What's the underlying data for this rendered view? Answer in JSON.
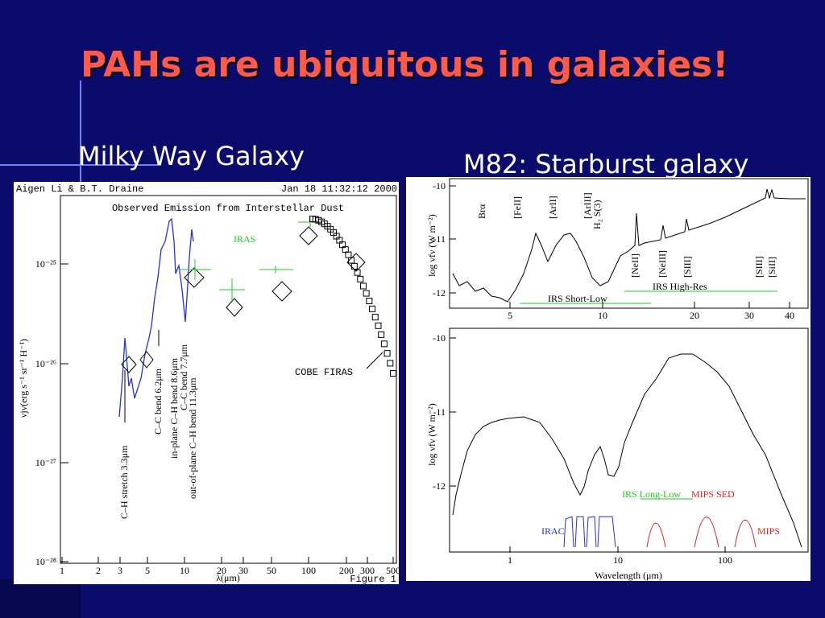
{
  "slide": {
    "title": "PAHs are ubiquitous in galaxies!"
  },
  "left_figure": {
    "caption": "Milky Way Galaxy",
    "credit": "Aigen Li & B.T. Draine",
    "timestamp": "Jan 18 11:32:12 2000",
    "plot_title": "Observed Emission from Interstellar Dust",
    "y_axis_label": "νjν(erg s⁻¹ sr⁻¹ H⁻¹)",
    "x_axis_label": "λ(μm)",
    "y_ticks": [
      "10⁻²⁵",
      "10⁻²⁶",
      "10⁻²⁷",
      "10⁻²⁸"
    ],
    "x_ticks": [
      "1",
      "2",
      "3",
      "5",
      "10",
      "20",
      "30",
      "50",
      "100",
      "200",
      "300",
      "500"
    ],
    "annotations": [
      "IRAS",
      "COBE FIRAS",
      "C–H stretch 3.3μm",
      "C–C bend 6.2μm",
      "in-plane C–H bend 8.6μm",
      "C–C bend 7.7μm",
      "out-of-plane C–H bend 11.3μm"
    ],
    "figure_label": "Figure 1"
  },
  "right_figure": {
    "caption": "M82: Starburst galaxy",
    "top_panel": {
      "y_axis_label": "log νfν (W m⁻²)",
      "y_ticks": [
        "-10",
        "-11",
        "-12"
      ],
      "x_ticks": [
        "5",
        "10",
        "20",
        "30",
        "40"
      ],
      "line_labels": [
        "Brα",
        "[FeII]",
        "[ArII]",
        "[ArIII]",
        "H₂ S(3)",
        "[NeII]",
        "[NeIII]",
        "[SIII]",
        "[SIII]",
        "[SiII]"
      ],
      "instrument_labels": [
        "IRS Short-Low",
        "IRS High-Res"
      ]
    },
    "bottom_panel": {
      "y_axis_label": "log νfν (W m⁻²)",
      "y_ticks": [
        "-10",
        "-11",
        "-12"
      ],
      "x_ticks": [
        "1",
        "10",
        "100"
      ],
      "x_axis_label": "Wavelength (μm)",
      "instrument_labels": [
        "IRS Long-Low",
        "MIPS SED",
        "IRAC",
        "MIPS"
      ]
    }
  }
}
